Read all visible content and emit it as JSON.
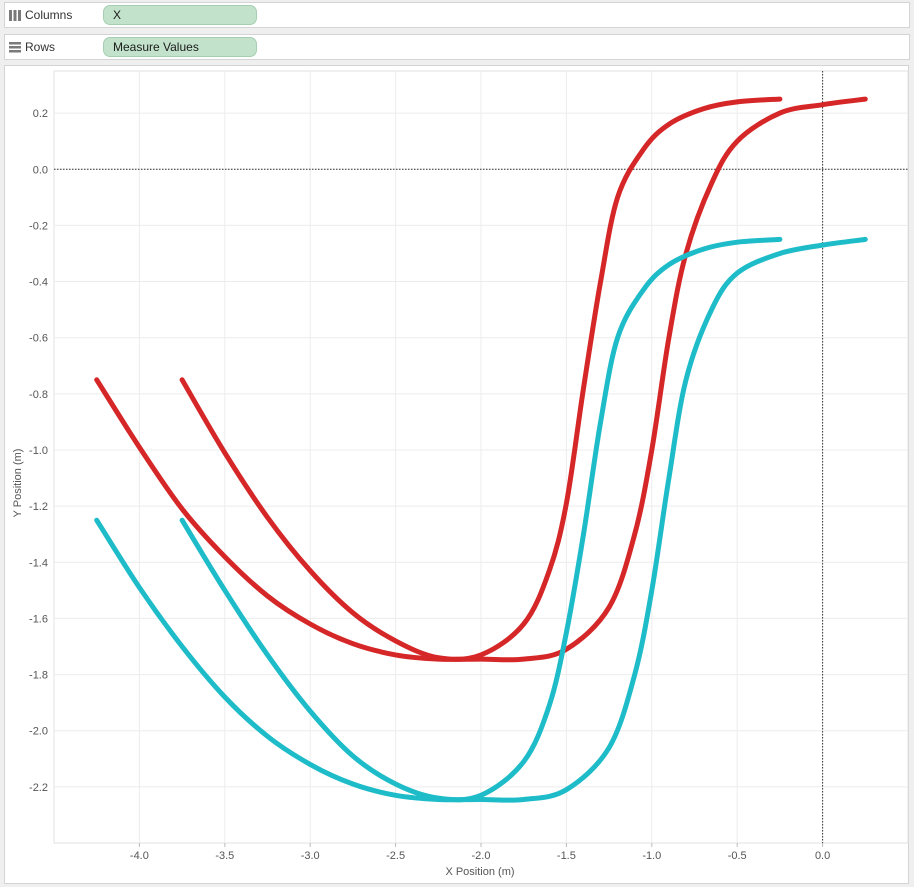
{
  "shelves": {
    "columns": {
      "label": "Columns",
      "pill": "X"
    },
    "rows": {
      "label": "Rows",
      "pill": "Measure Values"
    }
  },
  "colors": {
    "red": "#d62728",
    "teal": "#1ebcc8"
  },
  "chart_data": {
    "type": "line",
    "title": "",
    "xlabel": "X Position (m)",
    "ylabel": "Y Position (m)",
    "xlim": [
      -4.5,
      0.5
    ],
    "ylim": [
      -2.4,
      0.35
    ],
    "x_ticks": [
      "-4.0",
      "-3.5",
      "-3.0",
      "-2.5",
      "-2.0",
      "-1.5",
      "-1.0",
      "-0.5",
      "0.0"
    ],
    "y_ticks": [
      "0.2",
      "0.0",
      "-0.2",
      "-0.4",
      "-0.6",
      "-0.8",
      "-1.0",
      "-1.2",
      "-1.4",
      "-1.6",
      "-1.8",
      "-2.0",
      "-2.2"
    ],
    "reference_lines": {
      "x": 0.0,
      "y": 0.0
    },
    "grid": true,
    "series": [
      {
        "color": "#d62728",
        "points": [
          [
            -3.75,
            -0.75
          ],
          [
            -3.5,
            -1.01
          ],
          [
            -3.25,
            -1.24
          ],
          [
            -3.0,
            -1.43
          ],
          [
            -2.75,
            -1.58
          ],
          [
            -2.5,
            -1.68
          ],
          [
            -2.25,
            -1.74
          ],
          [
            -2.0,
            -1.73
          ],
          [
            -1.75,
            -1.62
          ],
          [
            -1.6,
            -1.43
          ],
          [
            -1.5,
            -1.19
          ],
          [
            -1.4,
            -0.78
          ],
          [
            -1.3,
            -0.4
          ],
          [
            -1.2,
            -0.1
          ],
          [
            -1.05,
            0.07
          ],
          [
            -0.9,
            0.16
          ],
          [
            -0.7,
            0.215
          ],
          [
            -0.5,
            0.24
          ],
          [
            -0.25,
            0.25
          ]
        ]
      },
      {
        "color": "#d62728",
        "points": [
          [
            -4.25,
            -0.75
          ],
          [
            -4.0,
            -0.99
          ],
          [
            -3.75,
            -1.21
          ],
          [
            -3.5,
            -1.38
          ],
          [
            -3.25,
            -1.52
          ],
          [
            -3.0,
            -1.62
          ],
          [
            -2.75,
            -1.69
          ],
          [
            -2.5,
            -1.73
          ],
          [
            -2.25,
            -1.745
          ],
          [
            -2.0,
            -1.745
          ],
          [
            -1.75,
            -1.745
          ],
          [
            -1.5,
            -1.71
          ],
          [
            -1.25,
            -1.56
          ],
          [
            -1.1,
            -1.3
          ],
          [
            -1.0,
            -1.0
          ],
          [
            -0.9,
            -0.6
          ],
          [
            -0.8,
            -0.3
          ],
          [
            -0.65,
            -0.05
          ],
          [
            -0.5,
            0.1
          ],
          [
            -0.25,
            0.2
          ],
          [
            0.0,
            0.23
          ],
          [
            0.25,
            0.25
          ]
        ]
      },
      {
        "color": "#1ebcc8",
        "points": [
          [
            -3.75,
            -1.25
          ],
          [
            -3.5,
            -1.5
          ],
          [
            -3.25,
            -1.73
          ],
          [
            -3.0,
            -1.93
          ],
          [
            -2.75,
            -2.09
          ],
          [
            -2.5,
            -2.19
          ],
          [
            -2.25,
            -2.24
          ],
          [
            -2.0,
            -2.23
          ],
          [
            -1.75,
            -2.11
          ],
          [
            -1.6,
            -1.91
          ],
          [
            -1.5,
            -1.65
          ],
          [
            -1.4,
            -1.3
          ],
          [
            -1.3,
            -0.9
          ],
          [
            -1.2,
            -0.6
          ],
          [
            -1.05,
            -0.43
          ],
          [
            -0.9,
            -0.34
          ],
          [
            -0.7,
            -0.285
          ],
          [
            -0.5,
            -0.26
          ],
          [
            -0.25,
            -0.25
          ]
        ]
      },
      {
        "color": "#1ebcc8",
        "points": [
          [
            -4.25,
            -1.25
          ],
          [
            -4.0,
            -1.49
          ],
          [
            -3.75,
            -1.7
          ],
          [
            -3.5,
            -1.88
          ],
          [
            -3.25,
            -2.02
          ],
          [
            -3.0,
            -2.12
          ],
          [
            -2.75,
            -2.19
          ],
          [
            -2.5,
            -2.23
          ],
          [
            -2.25,
            -2.245
          ],
          [
            -2.0,
            -2.245
          ],
          [
            -1.75,
            -2.245
          ],
          [
            -1.5,
            -2.21
          ],
          [
            -1.25,
            -2.06
          ],
          [
            -1.1,
            -1.8
          ],
          [
            -1.0,
            -1.5
          ],
          [
            -0.9,
            -1.1
          ],
          [
            -0.8,
            -0.75
          ],
          [
            -0.65,
            -0.5
          ],
          [
            -0.5,
            -0.37
          ],
          [
            -0.25,
            -0.3
          ],
          [
            0.0,
            -0.27
          ],
          [
            0.25,
            -0.25
          ]
        ]
      }
    ]
  }
}
